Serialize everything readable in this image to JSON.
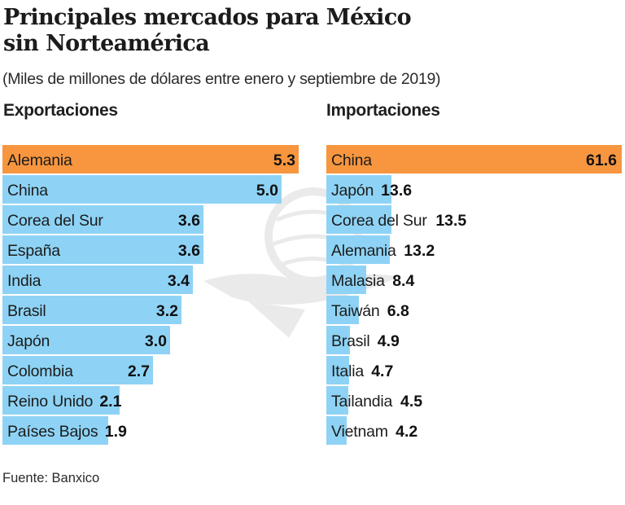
{
  "header": {
    "title_line1": "Principales mercados para México",
    "title_line2": "sin Norteamérica",
    "subtitle": "(Miles de millones de dólares entre enero y septiembre de 2019)"
  },
  "colors": {
    "highlight": "#f7963f",
    "bar": "#8ed3f5"
  },
  "footer": {
    "source": "Fuente: Banxico"
  },
  "watermark_icon": "eagle-emblem-icon",
  "chart_data": [
    {
      "type": "bar",
      "orientation": "horizontal",
      "title": "Exportaciones",
      "unit": "Miles de millones de dólares",
      "categories": [
        "Alemania",
        "China",
        "Corea del Sur",
        "España",
        "India",
        "Brasil",
        "Japón",
        "Colombia",
        "Reino Unido",
        "Países Bajos"
      ],
      "values": [
        5.3,
        5.0,
        3.6,
        3.6,
        3.4,
        3.2,
        3.0,
        2.7,
        2.1,
        1.9
      ],
      "value_labels": [
        "5.3",
        "5.0",
        "3.6",
        "3.6",
        "3.4",
        "3.2",
        "3.0",
        "2.7",
        "2.1",
        "1.9"
      ],
      "highlight_index": 0,
      "xlim": [
        0,
        5.3
      ],
      "grid": false,
      "legend": "none"
    },
    {
      "type": "bar",
      "orientation": "horizontal",
      "title": "Importaciones",
      "unit": "Miles de millones de dólares",
      "categories": [
        "China",
        "Japón",
        "Corea del Sur",
        "Alemania",
        "Malasia",
        "Taiwán",
        "Brasil",
        "Italia",
        "Tailandia",
        "Vietnam"
      ],
      "values": [
        61.6,
        13.6,
        13.5,
        13.2,
        8.4,
        6.8,
        4.9,
        4.7,
        4.5,
        4.2
      ],
      "value_labels": [
        "61.6",
        "13.6",
        "13.5",
        "13.2",
        "8.4",
        "6.8",
        "4.9",
        "4.7",
        "4.5",
        "4.2"
      ],
      "highlight_index": 0,
      "xlim": [
        0,
        61.6
      ],
      "grid": false,
      "legend": "none"
    }
  ]
}
